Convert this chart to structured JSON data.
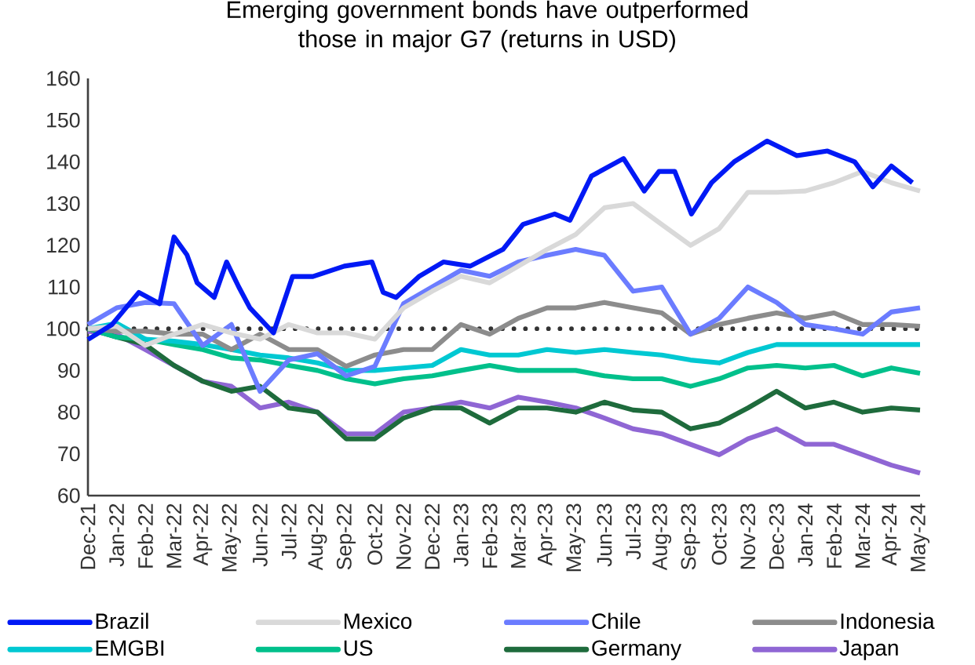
{
  "chart_data": {
    "type": "line",
    "title": "Emerging government bonds have outperformed those in major G7 (returns in USD)",
    "x": [
      "2021-12-01",
      "2022-01-01",
      "2022-02-01",
      "2022-03-01",
      "2022-04-01",
      "2022-05-01",
      "2022-06-01",
      "2022-07-01",
      "2022-08-01",
      "2022-09-01",
      "2022-10-01",
      "2022-11-01",
      "2022-12-01",
      "2023-01-01",
      "2023-02-01",
      "2023-03-01",
      "2023-04-01",
      "2023-05-01",
      "2023-06-01",
      "2023-07-01",
      "2023-08-01",
      "2023-09-01",
      "2023-10-01",
      "2023-11-01",
      "2023-12-01",
      "2024-01-01",
      "2024-02-01",
      "2024-03-01",
      "2024-04-01",
      "2024-05-01"
    ],
    "xlim": [
      "2021-12-01",
      "2024-05-01"
    ],
    "xticks": [
      {
        "value": "2021-12-01",
        "label": "Dec-21"
      },
      {
        "value": "2022-01-01",
        "label": "Jan-22"
      },
      {
        "value": "2022-02-01",
        "label": "Feb-22"
      },
      {
        "value": "2022-03-01",
        "label": "Mar-22"
      },
      {
        "value": "2022-04-01",
        "label": "Apr-22"
      },
      {
        "value": "2022-05-01",
        "label": "May-22"
      },
      {
        "value": "2022-06-01",
        "label": "Jun-22"
      },
      {
        "value": "2022-07-01",
        "label": "Jul-22"
      },
      {
        "value": "2022-08-01",
        "label": "Aug-22"
      },
      {
        "value": "2022-09-01",
        "label": "Sep-22"
      },
      {
        "value": "2022-10-01",
        "label": "Oct-22"
      },
      {
        "value": "2022-11-01",
        "label": "Nov-22"
      },
      {
        "value": "2022-12-01",
        "label": "Dec-22"
      },
      {
        "value": "2023-01-01",
        "label": "Jan-23"
      },
      {
        "value": "2023-02-01",
        "label": "Feb-23"
      },
      {
        "value": "2023-03-01",
        "label": "Mar-23"
      },
      {
        "value": "2023-04-01",
        "label": "Apr-23"
      },
      {
        "value": "2023-05-01",
        "label": "May-23"
      },
      {
        "value": "2023-06-01",
        "label": "Jun-23"
      },
      {
        "value": "2023-07-01",
        "label": "Jul-23"
      },
      {
        "value": "2023-08-01",
        "label": "Aug-23"
      },
      {
        "value": "2023-09-01",
        "label": "Sep-23"
      },
      {
        "value": "2023-10-01",
        "label": "Oct-23"
      },
      {
        "value": "2023-11-01",
        "label": "Nov-23"
      },
      {
        "value": "2023-12-01",
        "label": "Dec-23"
      },
      {
        "value": "2024-01-01",
        "label": "Jan-24"
      },
      {
        "value": "2024-02-01",
        "label": "Feb-24"
      },
      {
        "value": "2024-03-01",
        "label": "Mar-24"
      },
      {
        "value": "2024-04-01",
        "label": "Apr-24"
      },
      {
        "value": "2024-05-01",
        "label": "May-24"
      }
    ],
    "ylim": [
      60,
      160
    ],
    "yticks": [
      60,
      70,
      80,
      90,
      100,
      110,
      120,
      130,
      140,
      150,
      160
    ],
    "legend": "bottom",
    "ref_lines": [
      {
        "axis": "y",
        "value": 100,
        "color": "#333333",
        "line_style": "dotted"
      }
    ],
    "series": [
      {
        "name": "Brazil",
        "color": "#0019f5",
        "x": [
          "2021-12-01",
          "2021-12-27",
          "2022-01-25",
          "2022-02-15",
          "2022-03-01",
          "2022-03-15",
          "2022-03-26",
          "2022-04-13",
          "2022-04-26",
          "2022-05-09",
          "2022-05-21",
          "2022-06-15",
          "2022-07-05",
          "2022-07-27",
          "2022-08-30",
          "2022-09-28",
          "2022-10-10",
          "2022-10-24",
          "2022-11-17",
          "2022-12-13",
          "2023-01-11",
          "2023-02-14",
          "2023-03-06",
          "2023-04-09",
          "2023-04-25",
          "2023-05-18",
          "2023-06-21",
          "2023-07-13",
          "2023-07-29",
          "2023-08-15",
          "2023-09-02",
          "2023-09-23",
          "2023-10-17",
          "2023-11-21",
          "2023-12-23",
          "2024-01-25",
          "2024-02-22",
          "2024-03-12",
          "2024-04-01",
          "2024-04-23"
        ],
        "values": [
          97.4,
          101,
          108.7,
          106,
          122,
          117.7,
          111,
          107.5,
          116,
          110,
          105,
          99,
          112.5,
          112.5,
          115,
          116,
          108.7,
          107.5,
          112.5,
          116,
          115,
          119,
          125,
          127.5,
          126,
          136.6,
          140.8,
          133,
          137.7,
          137.7,
          127.5,
          135,
          140,
          145,
          141.5,
          142.6,
          140,
          134,
          139,
          135
        ]
      },
      {
        "name": "Mexico",
        "color": "#d9d9d9",
        "values": [
          100,
          100.6,
          96,
          98.7,
          101,
          99,
          97.5,
          101,
          99,
          99,
          97.5,
          105,
          109,
          112.6,
          111,
          115,
          119,
          122.6,
          129,
          130,
          125,
          120,
          124,
          132.7,
          132.7,
          133,
          135,
          137.7,
          135,
          133
        ]
      },
      {
        "name": "Chile",
        "color": "#6b7cff",
        "values": [
          101,
          105,
          106.3,
          106,
          96,
          101,
          85,
          92.5,
          94,
          88.7,
          91,
          106,
          110,
          114,
          112.6,
          116,
          117.6,
          119,
          117.6,
          109,
          110,
          98.7,
          102.5,
          110,
          106.3,
          101,
          100,
          98.7,
          104,
          105
        ]
      },
      {
        "name": "Indonesia",
        "color": "#8c8c8c",
        "values": [
          100,
          99.4,
          99.4,
          98.7,
          98.7,
          95,
          98.7,
          95,
          95,
          91,
          93.7,
          95,
          95,
          101,
          98.7,
          102.5,
          105,
          105,
          106.3,
          105,
          103.8,
          98.7,
          101,
          102.5,
          103.8,
          102.5,
          103.8,
          101,
          101,
          100.6
        ]
      },
      {
        "name": "EMGBI",
        "color": "#00c8d2",
        "values": [
          100,
          101.3,
          97.5,
          97,
          96.2,
          95,
          93.7,
          93,
          91.8,
          90,
          90,
          90.6,
          91.2,
          95,
          93.7,
          93.7,
          95,
          94.3,
          95,
          94.3,
          93.7,
          92.5,
          91.8,
          94.3,
          96.2,
          96.2,
          96.2,
          96.2,
          96.2,
          96.2
        ]
      },
      {
        "name": "US",
        "color": "#00c08b",
        "values": [
          100,
          98,
          97.5,
          96.2,
          95,
          93,
          92.5,
          91.2,
          90,
          88,
          86.8,
          88,
          88.7,
          90,
          91.2,
          90,
          90,
          90,
          88.7,
          88,
          88,
          86.2,
          88,
          90.6,
          91.2,
          90.6,
          91.2,
          88.7,
          90.6,
          89.3
        ]
      },
      {
        "name": "Germany",
        "color": "#1e6b3c",
        "values": [
          100,
          98,
          96.2,
          91.2,
          87.4,
          85,
          86.2,
          81,
          80,
          73.6,
          73.6,
          78.6,
          81,
          81,
          77.4,
          81,
          81,
          80,
          82.4,
          80.5,
          80,
          76,
          77.4,
          81,
          85,
          81,
          82.4,
          80,
          81,
          80.5
        ]
      },
      {
        "name": "Japan",
        "color": "#8f66d4",
        "values": [
          99.4,
          98.7,
          95,
          91.2,
          87.4,
          86.2,
          81,
          82.4,
          80,
          74.8,
          74.8,
          80,
          81,
          82.4,
          81,
          83.6,
          82.4,
          81,
          78.6,
          76,
          74.8,
          72.3,
          69.8,
          73.6,
          76,
          72.3,
          72.3,
          69.8,
          67.3,
          65.4
        ]
      }
    ]
  }
}
